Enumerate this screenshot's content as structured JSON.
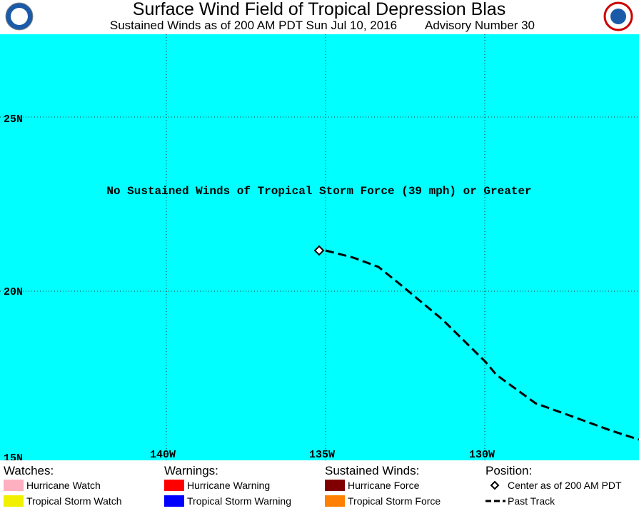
{
  "header": {
    "title": "Surface Wind Field of Tropical Depression Blas",
    "subtitle": "Sustained Winds as of 200 AM PDT Sun Jul 10, 2016",
    "advisory": "Advisory Number 30"
  },
  "map": {
    "message": "No Sustained Winds of Tropical Storm Force (39 mph) or Greater",
    "lat_labels": [
      "25N",
      "20N",
      "15N"
    ],
    "lon_labels": [
      "140W",
      "135W",
      "130W"
    ]
  },
  "legend": {
    "groups": [
      {
        "heading": "Watches:",
        "items": [
          "Hurricane Watch",
          "Tropical Storm Watch"
        ]
      },
      {
        "heading": "Warnings:",
        "items": [
          "Hurricane Warning",
          "Tropical Storm Warning"
        ]
      },
      {
        "heading": "Sustained Winds:",
        "items": [
          "Hurricane Force",
          "Tropical Storm Force"
        ]
      },
      {
        "heading": "Position:",
        "items": [
          "Center as of 200 AM PDT",
          "Past Track"
        ]
      }
    ]
  }
}
